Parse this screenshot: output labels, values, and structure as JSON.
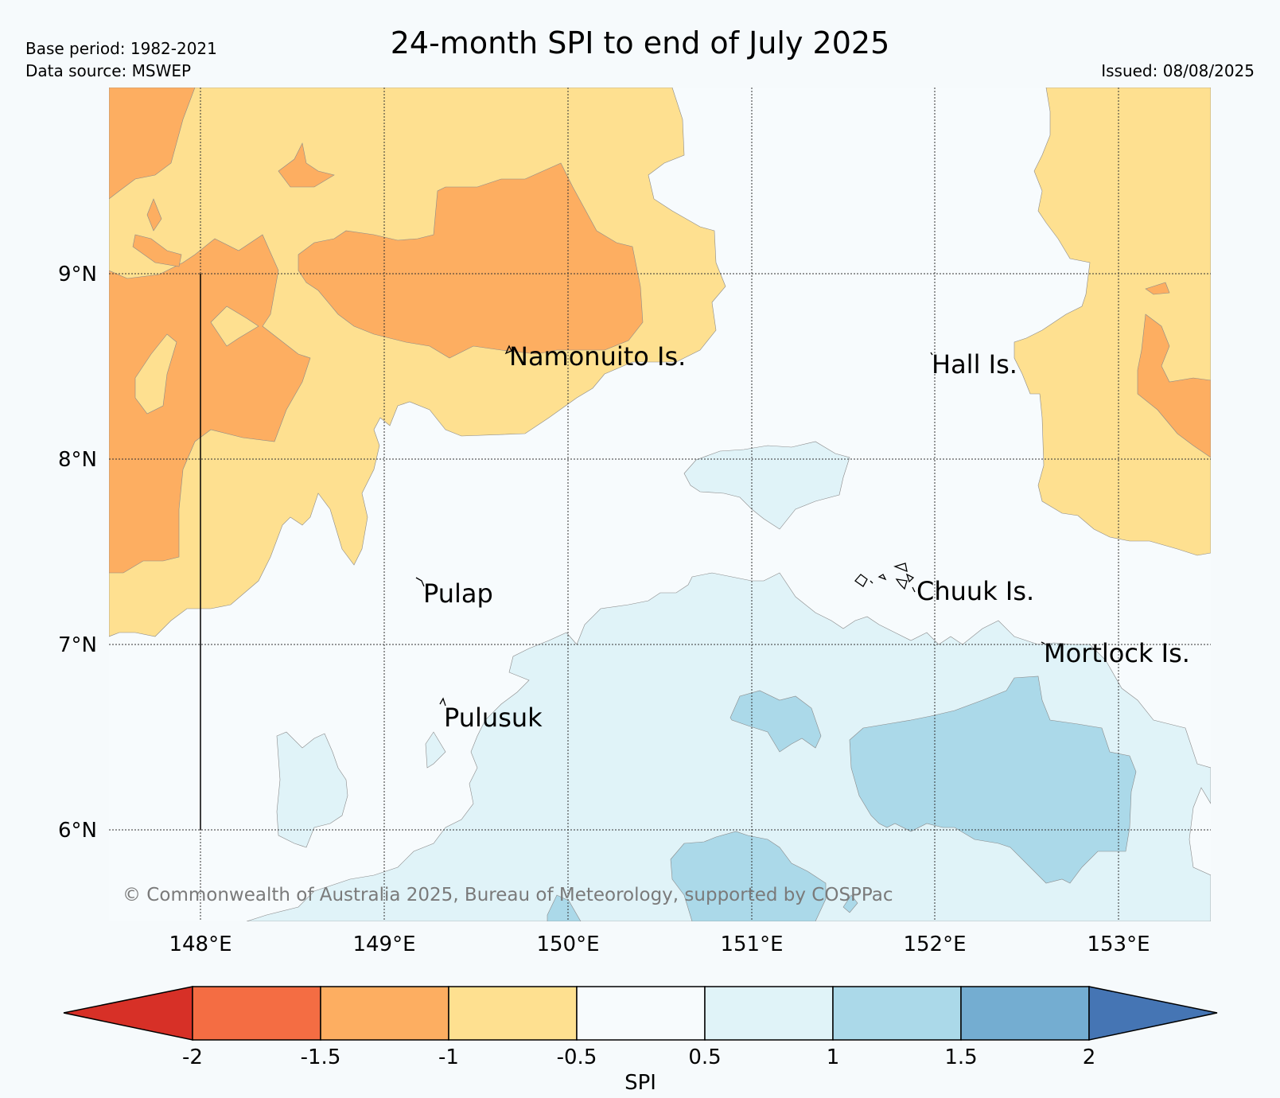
{
  "header": {
    "title": "24-month SPI to end of July 2025",
    "base_period": "Base period: 1982-2021",
    "data_source": "Data source: MSWEP",
    "issued": "Issued: 08/08/2025"
  },
  "map": {
    "latitude_labels": [
      "9°N",
      "8°N",
      "7°N",
      "6°N"
    ],
    "longitude_labels": [
      "148°E",
      "149°E",
      "150°E",
      "151°E",
      "152°E",
      "153°E"
    ],
    "places": [
      {
        "id": "namonuito",
        "name": "Namonuito Is."
      },
      {
        "id": "hall",
        "name": "Hall Is."
      },
      {
        "id": "pulap",
        "name": "Pulap"
      },
      {
        "id": "chuuk",
        "name": "Chuuk Is."
      },
      {
        "id": "mortlock",
        "name": "Mortlock Is."
      },
      {
        "id": "pulusuk",
        "name": "Pulusuk"
      }
    ],
    "copyright": "© Commonwealth of Australia 2025, Bureau of Meteorology, supported by COSPPac"
  },
  "colorbar": {
    "label": "SPI",
    "ticks": [
      "-2",
      "-1.5",
      "-1",
      "-0.5",
      "0.5",
      "1",
      "1.5",
      "2"
    ],
    "colors": {
      "below_-2": "#d73027",
      "-2_-1.5": "#f46d43",
      "-1.5_-1": "#fdae61",
      "-1_-0.5": "#fee090",
      "-0.5_0.5": "#f7fbfd",
      "0.5_1": "#e0f3f8",
      "1_1.5": "#abd9e9",
      "1.5_2": "#74add1",
      "above_2": "#4575b4"
    }
  }
}
